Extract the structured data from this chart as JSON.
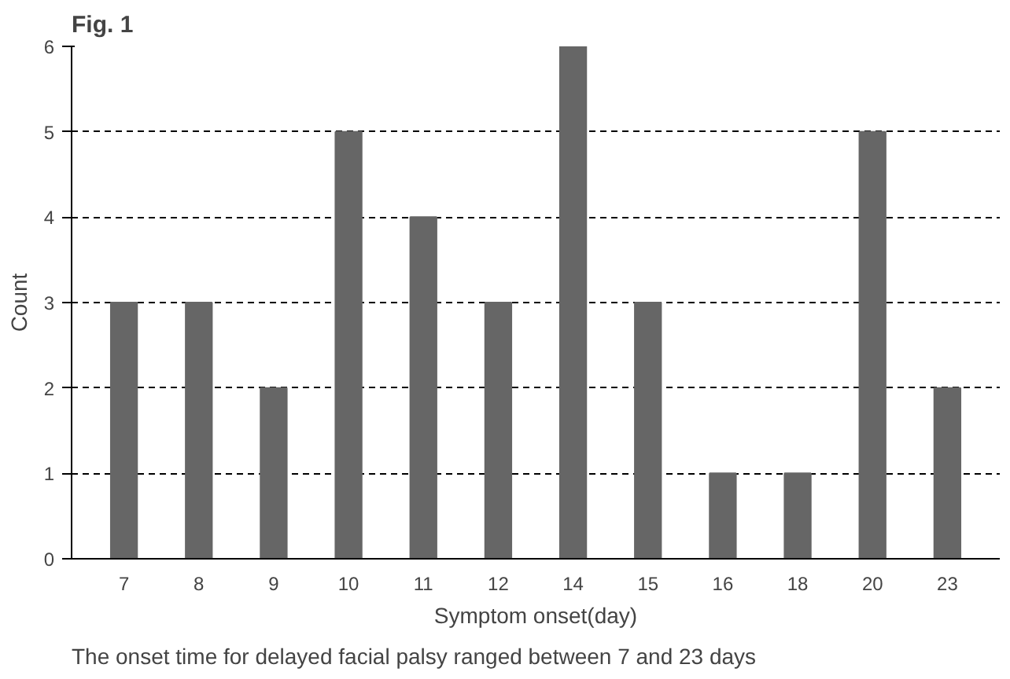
{
  "chart_data": {
    "type": "bar",
    "title": "Fig. 1",
    "xlabel": "Symptom onset(day)",
    "ylabel": "Count",
    "categories": [
      "7",
      "8",
      "9",
      "10",
      "11",
      "12",
      "14",
      "15",
      "16",
      "18",
      "20",
      "23"
    ],
    "values": [
      3,
      3,
      2,
      5,
      4,
      3,
      6,
      3,
      1,
      1,
      5,
      2
    ],
    "color": "#666666",
    "ylim": [
      0,
      6
    ],
    "yticks": [
      0,
      1,
      2,
      3,
      4,
      5,
      6
    ],
    "grid": "y",
    "line_style": "dashed",
    "annotations": [
      "The onset time for delayed facial palsy ranged between 7 and 23 days"
    ]
  }
}
